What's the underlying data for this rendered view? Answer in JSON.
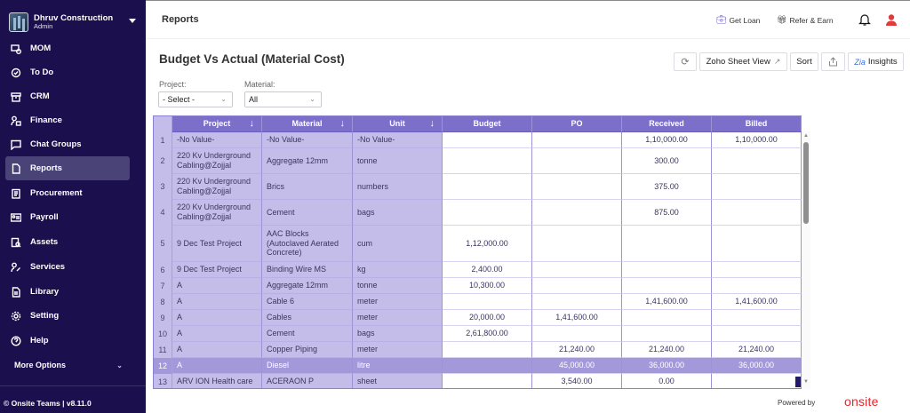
{
  "sidebar": {
    "brand": {
      "name": "Dhruv Construction",
      "role": "Admin"
    },
    "items": [
      {
        "label": "MOM",
        "icon": "meeting-clock-icon"
      },
      {
        "label": "To Do",
        "icon": "check-plus-icon"
      },
      {
        "label": "CRM",
        "icon": "archive-box-icon"
      },
      {
        "label": "Finance",
        "icon": "user-wallet-icon"
      },
      {
        "label": "Chat Groups",
        "icon": "chat-icon"
      },
      {
        "label": "Reports",
        "icon": "document-icon",
        "active": true
      },
      {
        "label": "Procurement",
        "icon": "clipboard-icon"
      },
      {
        "label": "Payroll",
        "icon": "id-card-icon"
      },
      {
        "label": "Assets",
        "icon": "clipboard-search-icon"
      },
      {
        "label": "Services",
        "icon": "user-wrench-icon"
      },
      {
        "label": "Library",
        "icon": "file-text-icon"
      },
      {
        "label": "Setting",
        "icon": "gear-icon"
      },
      {
        "label": "Help",
        "icon": "help-circle-icon"
      }
    ],
    "more_options": "More Options",
    "version": "© Onsite Teams | v8.11.0"
  },
  "topbar": {
    "title": "Reports",
    "get_loan": "Get Loan",
    "refer_earn": "Refer & Earn"
  },
  "report": {
    "title": "Budget Vs Actual (Material Cost)",
    "toolbar": {
      "zoho_sheet_view": "Zoho Sheet View",
      "sort": "Sort",
      "insights": "Insights"
    },
    "filters": {
      "project_label": "Project:",
      "project_value": "- Select -",
      "material_label": "Material:",
      "material_value": "All"
    }
  },
  "table": {
    "headers": [
      "Project",
      "Material",
      "Unit",
      "Budget",
      "PO",
      "Received",
      "Billed"
    ],
    "rows": [
      {
        "n": "1",
        "project": "-No Value-",
        "material": "-No Value-",
        "unit": "-No Value-",
        "budget": "",
        "po": "",
        "received": "1,10,000.00",
        "billed": "1,10,000.00"
      },
      {
        "n": "2",
        "project": "220 Kv Underground Cabling@Zojjal",
        "material": "Aggregate 12mm",
        "unit": "tonne",
        "budget": "",
        "po": "",
        "received": "300.00",
        "billed": ""
      },
      {
        "n": "3",
        "project": "220 Kv Underground Cabling@Zojjal",
        "material": "Brics",
        "unit": "numbers",
        "budget": "",
        "po": "",
        "received": "375.00",
        "billed": ""
      },
      {
        "n": "4",
        "project": "220 Kv Underground Cabling@Zojjal",
        "material": "Cement",
        "unit": "bags",
        "budget": "",
        "po": "",
        "received": "875.00",
        "billed": ""
      },
      {
        "n": "5",
        "project": "9 Dec Test Project",
        "material": "AAC Blocks (Autoclaved Aerated Concrete)",
        "unit": "cum",
        "budget": "1,12,000.00",
        "po": "",
        "received": "",
        "billed": ""
      },
      {
        "n": "6",
        "project": "9 Dec Test Project",
        "material": "Binding Wire MS",
        "unit": "kg",
        "budget": "2,400.00",
        "po": "",
        "received": "",
        "billed": ""
      },
      {
        "n": "7",
        "project": "A",
        "material": "Aggregate 12mm",
        "unit": "tonne",
        "budget": "10,300.00",
        "po": "",
        "received": "",
        "billed": ""
      },
      {
        "n": "8",
        "project": "A",
        "material": "Cable 6",
        "unit": "meter",
        "budget": "",
        "po": "",
        "received": "1,41,600.00",
        "billed": "1,41,600.00"
      },
      {
        "n": "9",
        "project": "A",
        "material": "Cables",
        "unit": "meter",
        "budget": "20,000.00",
        "po": "1,41,600.00",
        "received": "",
        "billed": ""
      },
      {
        "n": "10",
        "project": "A",
        "material": "Cement",
        "unit": "bags",
        "budget": "2,61,800.00",
        "po": "",
        "received": "",
        "billed": ""
      },
      {
        "n": "11",
        "project": "A",
        "material": "Copper Piping",
        "unit": "meter",
        "budget": "",
        "po": "21,240.00",
        "received": "21,240.00",
        "billed": "21,240.00"
      },
      {
        "n": "12",
        "project": "A",
        "material": "Diesel",
        "unit": "litre",
        "budget": "",
        "po": "45,000.00",
        "received": "36,000.00",
        "billed": "36,000.00",
        "selected": true
      },
      {
        "n": "13",
        "project": "ARV ION Health care",
        "material": "ACERAON P",
        "unit": "sheet",
        "budget": "",
        "po": "3,540.00",
        "received": "0.00",
        "billed": ""
      }
    ]
  },
  "footer": {
    "powered_by": "Powered by",
    "brand": "onsite"
  },
  "colors": {
    "sidebar_bg": "#1b0f4d",
    "active_item": "#4a4378",
    "header_bg": "#7c6fc9",
    "frozen_bg": "#c5bde9",
    "selected_row": "#a398da",
    "brand_red": "#e4262c"
  }
}
